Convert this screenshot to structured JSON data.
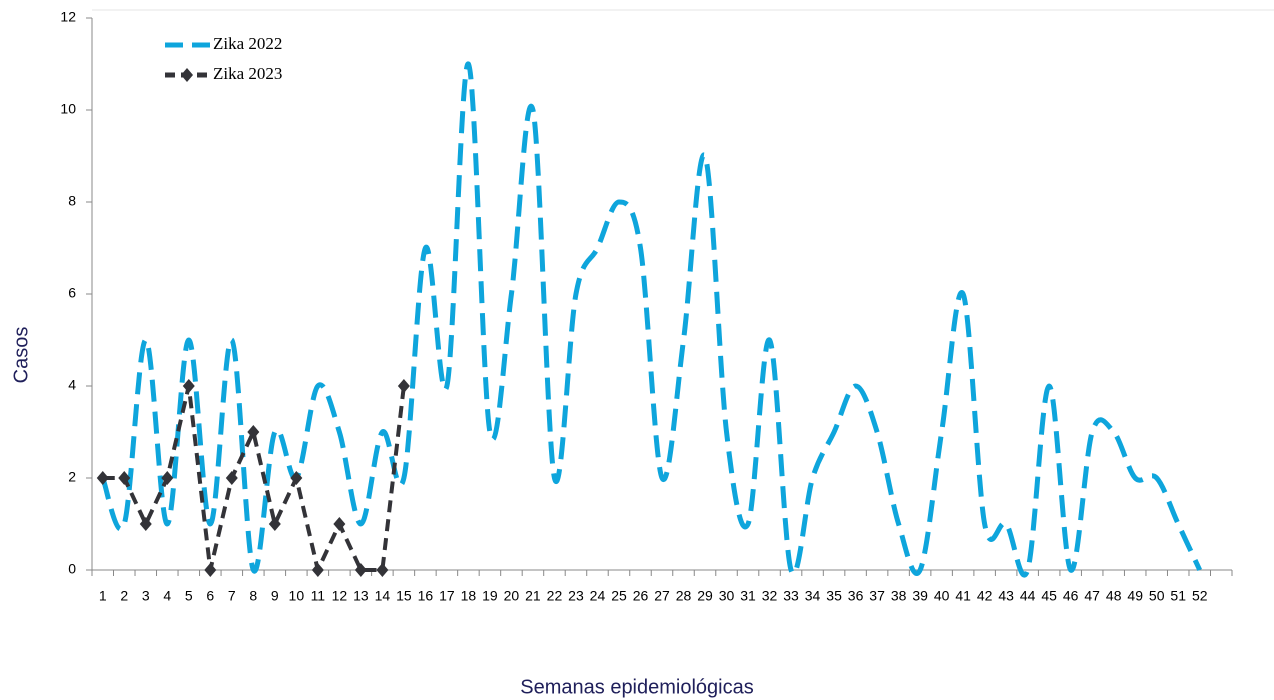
{
  "chart_data": {
    "type": "line",
    "xlabel": "Semanas epidemiológicas",
    "ylabel": "Casos",
    "categories": [
      "1",
      "2",
      "3",
      "4",
      "5",
      "6",
      "7",
      "8",
      "9",
      "10",
      "11",
      "12",
      "13",
      "14",
      "15",
      "16",
      "17",
      "18",
      "19",
      "20",
      "21",
      "22",
      "23",
      "24",
      "25",
      "26",
      "27",
      "28",
      "29",
      "30",
      "31",
      "32",
      "33",
      "34",
      "35",
      "36",
      "37",
      "38",
      "39",
      "40",
      "41",
      "42",
      "43",
      "44",
      "45",
      "46",
      "47",
      "48",
      "49",
      "50",
      "51",
      "52"
    ],
    "series": [
      {
        "name": "Zika 2022",
        "color": "#0ea5dc",
        "marker": "none",
        "smooth": true,
        "values": [
          2,
          1,
          5,
          1,
          5,
          1,
          5,
          0,
          3,
          2,
          4,
          3,
          1,
          3,
          2,
          7,
          4,
          11,
          3,
          6,
          10,
          2,
          6,
          7,
          8,
          7,
          2,
          5,
          9,
          3,
          1,
          5,
          0,
          2,
          3,
          4,
          3,
          1,
          0,
          3,
          6,
          1,
          1,
          0,
          4,
          0,
          3,
          3,
          2,
          2,
          1,
          0
        ]
      },
      {
        "name": "Zika 2023",
        "color": "#333338",
        "marker": "diamond",
        "smooth": false,
        "values": [
          2,
          2,
          1,
          2,
          4,
          0,
          2,
          3,
          1,
          2,
          0,
          1,
          0,
          0,
          4,
          null,
          null,
          null,
          null,
          null,
          null,
          null,
          null,
          null,
          null,
          null,
          null,
          null,
          null,
          null,
          null,
          null,
          null,
          null,
          null,
          null,
          null,
          null,
          null,
          null,
          null,
          null,
          null,
          null,
          null,
          null,
          null,
          null,
          null,
          null,
          null,
          null
        ]
      }
    ],
    "ylim": [
      0,
      12
    ],
    "yticks": [
      0,
      2,
      4,
      6,
      8,
      10,
      12
    ],
    "grid": false,
    "legend": "upper left"
  }
}
